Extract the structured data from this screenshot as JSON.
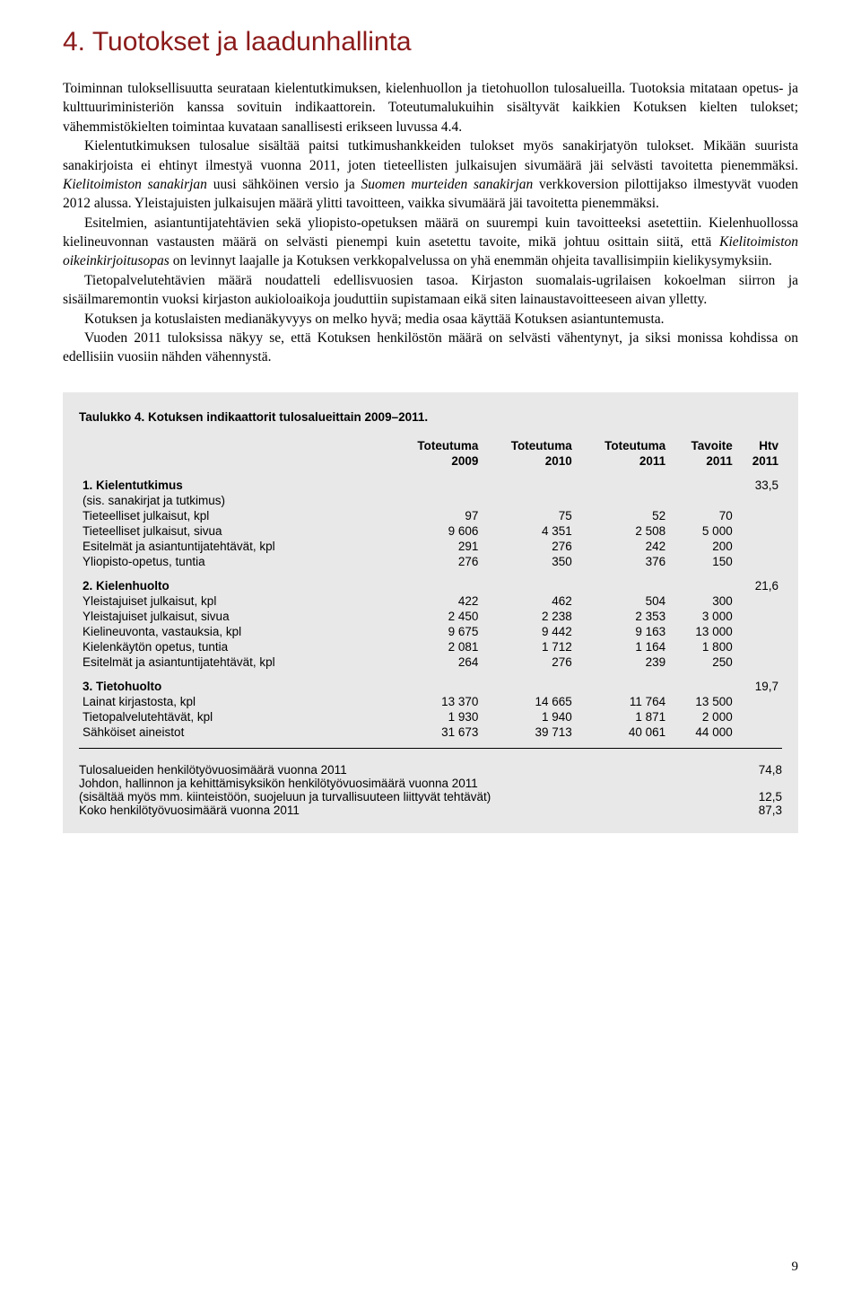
{
  "heading": "4. Tuotokset ja laadunhallinta",
  "paragraphs": {
    "p1a": "Toiminnan tuloksellisuutta seurataan kielentutkimuksen, kielenhuollon ja tietohuollon tulosalueilla. Tuotoksia mitataan opetus- ja kulttuuriministeriön kanssa sovituin indikaattorein. Toteutumalukuihin sisältyvät kaikkien Kotuksen kielten tulokset; vähemmistökielten toimintaa kuvataan sanallisesti erikseen luvussa 4.4.",
    "p2a": "Kielentutkimuksen tulosalue sisältää paitsi tutkimushankkeiden tulokset myös sanakirjatyön tulokset. Mikään suurista sanakirjoista ei ehtinyt ilmestyä vuonna 2011, joten tieteellisten julkaisujen sivumäärä jäi selvästi tavoitetta pienemmäksi. ",
    "i1": "Kielitoimiston sanakirjan",
    "p2b": " uusi sähköinen versio ja ",
    "i2": "Suomen murteiden sanakirjan",
    "p2c": " verkkoversion pilottijakso ilmestyvät vuoden 2012 alussa. Yleistajuisten julkaisujen määrä ylitti tavoitteen, vaikka sivumäärä jäi tavoitetta pienemmäksi.",
    "p3a": "Esitelmien, asiantuntijatehtävien sekä yliopisto-opetuksen määrä on suurempi kuin tavoitteeksi asetettiin. Kielenhuollossa kielineuvonnan vastausten määrä on selvästi pienempi kuin asetettu tavoite, mikä johtuu osittain siitä, että ",
    "i3": "Kielitoimiston oikeinkirjoitusopas",
    "p3b": " on levinnyt laajalle ja Kotuksen verkkopalvelussa on yhä enemmän ohjeita tavallisimpiin kielikysymyksiin.",
    "p4": "Tietopalvelutehtävien määrä noudatteli edellisvuosien tasoa. Kirjaston suomalais-ugrilaisen kokoelman siirron ja sisäilmaremontin vuoksi kirjaston aukioloaikoja jouduttiin supistamaan eikä siten lainaustavoitteeseen aivan ylletty.",
    "p5": "Kotuksen ja kotuslaisten medianäkyvyys on melko hyvä; media osaa käyttää Kotuksen asiantuntemusta.",
    "p6": "Vuoden 2011 tuloksissa näkyy se, että Kotuksen henkilöstön määrä on selvästi vähentynyt, ja siksi monissa kohdissa on edellisiin vuosiin nähden vähennystä."
  },
  "table": {
    "title": "Taulukko 4. Kotuksen indikaattorit tulosalueittain 2009–2011.",
    "headers": {
      "c1": "",
      "c2a": "Toteutuma",
      "c2b": "2009",
      "c3a": "Toteutuma",
      "c3b": "2010",
      "c4a": "Toteutuma",
      "c4b": "2011",
      "c5a": "Tavoite",
      "c5b": "2011",
      "c6a": "Htv",
      "c6b": "2011"
    },
    "sections": [
      {
        "head": "1. Kielentutkimus",
        "htv": "33,5",
        "sub": "(sis. sanakirjat ja tutkimus)",
        "rows": [
          {
            "l": "Tieteelliset julkaisut, kpl",
            "a": "97",
            "b": "75",
            "c": "52",
            "d": "70"
          },
          {
            "l": "Tieteelliset julkaisut, sivua",
            "a": "9 606",
            "b": "4 351",
            "c": "2 508",
            "d": "5 000"
          },
          {
            "l": "Esitelmät ja asiantuntijatehtävät, kpl",
            "a": "291",
            "b": "276",
            "c": "242",
            "d": "200"
          },
          {
            "l": "Yliopisto-opetus, tuntia",
            "a": "276",
            "b": "350",
            "c": "376",
            "d": "150"
          }
        ]
      },
      {
        "head": "2. Kielenhuolto",
        "htv": "21,6",
        "rows": [
          {
            "l": "Yleistajuiset julkaisut, kpl",
            "a": "422",
            "b": "462",
            "c": "504",
            "d": "300"
          },
          {
            "l": "Yleistajuiset julkaisut, sivua",
            "a": "2 450",
            "b": "2 238",
            "c": "2 353",
            "d": "3 000"
          },
          {
            "l": "Kielineuvonta, vastauksia, kpl",
            "a": "9 675",
            "b": "9 442",
            "c": "9 163",
            "d": "13 000"
          },
          {
            "l": "Kielenkäytön opetus, tuntia",
            "a": "2 081",
            "b": "1 712",
            "c": "1 164",
            "d": "1 800"
          },
          {
            "l": "Esitelmät ja asiantuntijatehtävät, kpl",
            "a": "264",
            "b": "276",
            "c": "239",
            "d": "250"
          }
        ]
      },
      {
        "head": "3. Tietohuolto",
        "htv": "19,7",
        "rows": [
          {
            "l": "Lainat kirjastosta, kpl",
            "a": "13 370",
            "b": "14 665",
            "c": "11 764",
            "d": "13 500"
          },
          {
            "l": "Tietopalvelutehtävät, kpl",
            "a": "1 930",
            "b": "1 940",
            "c": "1 871",
            "d": "2 000"
          },
          {
            "l": "Sähköiset aineistot",
            "a": "31 673",
            "b": "39 713",
            "c": "40 061",
            "d": "44 000"
          }
        ]
      }
    ],
    "footer": [
      {
        "l": "Tulosalueiden henkilötyövuosimäärä vuonna 2011",
        "v": "74,8"
      },
      {
        "l": "Johdon, hallinnon ja kehittämisyksikön henkilötyövuosimäärä vuonna 2011",
        "v": ""
      },
      {
        "l": "(sisältää myös mm. kiinteistöön, suojeluun ja turvallisuuteen liittyvät tehtävät)",
        "v": "12,5"
      },
      {
        "l": "Koko henkilötyövuosimäärä vuonna 2011",
        "v": "87,3"
      }
    ]
  },
  "page_number": "9"
}
